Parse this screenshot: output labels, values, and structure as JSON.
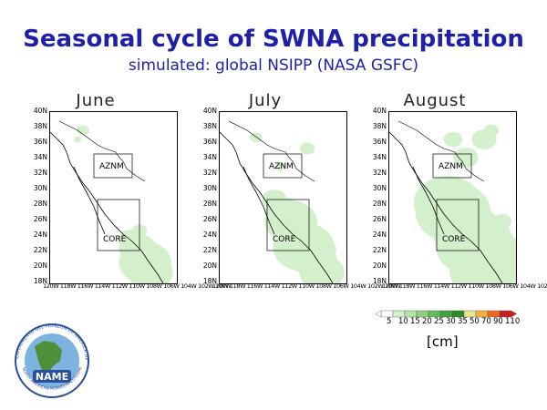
{
  "header": {
    "title": "Seasonal cycle of SWNA precipitation",
    "subtitle": "simulated: global NSIPP (NASA GSFC)"
  },
  "panels": [
    {
      "month": "June"
    },
    {
      "month": "July"
    },
    {
      "month": "August"
    }
  ],
  "axes": {
    "lat_labels": [
      "40N",
      "38N",
      "36N",
      "34N",
      "32N",
      "30N",
      "28N",
      "26N",
      "24N",
      "22N",
      "20N",
      "18N"
    ],
    "lon_labels": "120W 118W 116W 114W 112W 110W 108W 106W 104W 102W 100W"
  },
  "regions": {
    "north": "AZNM",
    "south": "CORE"
  },
  "colorbar": {
    "levels": [
      "5",
      "10",
      "15",
      "20",
      "25",
      "30",
      "35",
      "50",
      "70",
      "90",
      "110"
    ],
    "colors": [
      "#ffffff",
      "#d4efcc",
      "#b5e3a8",
      "#8fd17e",
      "#63bc58",
      "#3ea53a",
      "#2c8a2a",
      "#e9e58a",
      "#f2b33c",
      "#ec6a22",
      "#c7221a"
    ],
    "unit": "[cm]"
  },
  "logo": {
    "ring_text": "EXPERIMENTO DEL MONZON DE AMERICA DEL NORTE",
    "bottom_text": "NORTH AMERICAN MONSOON EXPERIMENT",
    "name": "NAME"
  }
}
